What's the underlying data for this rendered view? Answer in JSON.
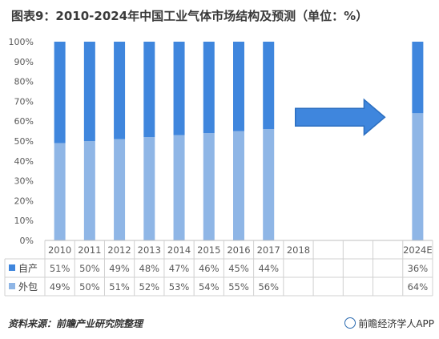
{
  "header": {
    "title": "图表9：2010-2024年中国工业气体市场结构及预测（单位：%）"
  },
  "footer": {
    "source": "资料来源：前瞻产业研究院整理",
    "brand": "前瞻经济学人APP"
  },
  "chart_data": {
    "type": "bar",
    "stacked": true,
    "percent": true,
    "categories": [
      "2010",
      "2011",
      "2012",
      "2013",
      "2014",
      "2015",
      "2016",
      "2017",
      "2018",
      "",
      "",
      "",
      "2024E"
    ],
    "series": [
      {
        "name": "自产",
        "color": "#3f86dd",
        "values": [
          51,
          50,
          49,
          48,
          47,
          46,
          45,
          44,
          null,
          null,
          null,
          null,
          36
        ],
        "labels": [
          "51%",
          "50%",
          "49%",
          "48%",
          "47%",
          "46%",
          "45%",
          "44%",
          "",
          "",
          "",
          "",
          "36%"
        ]
      },
      {
        "name": "外包",
        "color": "#8fb6e6",
        "values": [
          49,
          50,
          51,
          52,
          53,
          54,
          55,
          56,
          null,
          null,
          null,
          null,
          64
        ],
        "labels": [
          "49%",
          "50%",
          "51%",
          "52%",
          "53%",
          "54%",
          "55%",
          "56%",
          "",
          "",
          "",
          "",
          "64%"
        ]
      }
    ],
    "yticks": [
      "0%",
      "10%",
      "20%",
      "30%",
      "40%",
      "50%",
      "60%",
      "70%",
      "80%",
      "90%",
      "100%"
    ],
    "ylim": [
      0,
      100
    ],
    "grid": false,
    "data_table": true,
    "arrow_color": "#3f86dd"
  }
}
